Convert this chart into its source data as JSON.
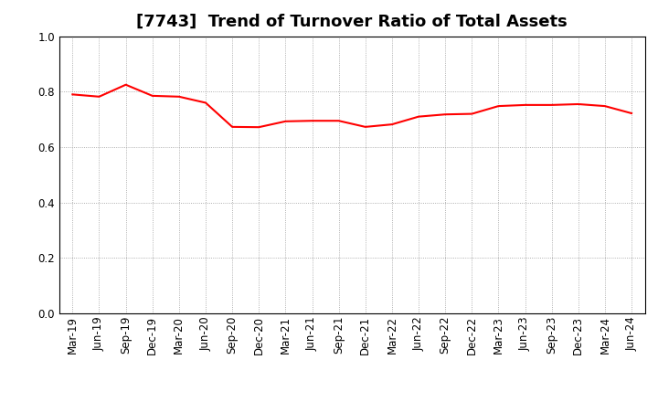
{
  "title": "[7743]  Trend of Turnover Ratio of Total Assets",
  "labels": [
    "Mar-19",
    "Jun-19",
    "Sep-19",
    "Dec-19",
    "Mar-20",
    "Jun-20",
    "Sep-20",
    "Dec-20",
    "Mar-21",
    "Jun-21",
    "Sep-21",
    "Dec-21",
    "Mar-22",
    "Jun-22",
    "Sep-22",
    "Dec-22",
    "Mar-23",
    "Jun-23",
    "Sep-23",
    "Dec-23",
    "Mar-24",
    "Jun-24"
  ],
  "values": [
    0.79,
    0.782,
    0.825,
    0.785,
    0.782,
    0.76,
    0.673,
    0.672,
    0.693,
    0.695,
    0.695,
    0.673,
    0.682,
    0.71,
    0.718,
    0.72,
    0.748,
    0.752,
    0.752,
    0.755,
    0.748,
    0.722
  ],
  "line_color": "#ff0000",
  "line_width": 1.5,
  "ylim": [
    0.0,
    1.0
  ],
  "yticks": [
    0.0,
    0.2,
    0.4,
    0.6,
    0.8,
    1.0
  ],
  "background_color": "#ffffff",
  "grid_color": "#999999",
  "title_fontsize": 13,
  "tick_fontsize": 8.5
}
